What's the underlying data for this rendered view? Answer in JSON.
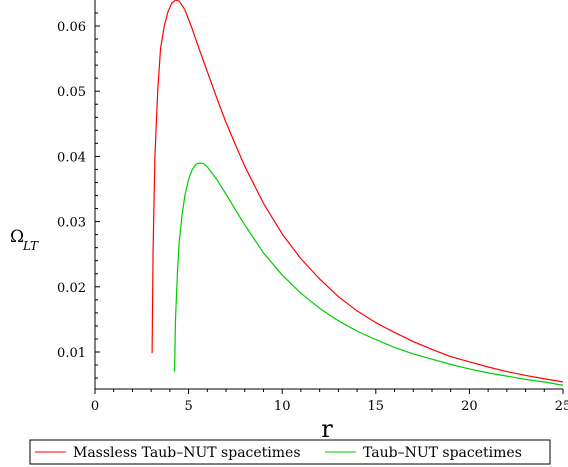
{
  "chart_data": {
    "type": "line",
    "title": "",
    "xlabel": "r",
    "ylabel": {
      "main": "Ω",
      "sub": "LT"
    },
    "xlim": [
      0,
      25
    ],
    "ylim": [
      0.004,
      0.065
    ],
    "x_ticks": [
      0,
      5,
      10,
      15,
      20,
      25
    ],
    "x_tick_labels": [
      "0",
      "5",
      "10",
      "15",
      "20",
      "25"
    ],
    "y_ticks": [
      0.01,
      0.02,
      0.03,
      0.04,
      0.05,
      0.06
    ],
    "y_tick_labels": [
      "0.01",
      "0.02",
      "0.03",
      "0.04",
      "0.05",
      "0.06"
    ],
    "grid": false,
    "legend_position": "bottom",
    "series": [
      {
        "name": "Massless Taub–NUT spacetimes",
        "color": "#ff0000",
        "x": [
          3.05,
          3.1,
          3.2,
          3.35,
          3.5,
          3.7,
          3.9,
          4.1,
          4.3,
          4.5,
          4.8,
          5.2,
          5.6,
          6.0,
          6.5,
          7.0,
          7.5,
          8.0,
          9.0,
          10.0,
          11.0,
          12.0,
          13.0,
          14.0,
          15.0,
          16.0,
          17.0,
          18.0,
          19.0,
          20.0,
          21.0,
          22.0,
          23.0,
          24.0,
          25.0
        ],
        "y": [
          0.0098,
          0.025,
          0.04,
          0.05,
          0.0565,
          0.06,
          0.0622,
          0.0635,
          0.064,
          0.0638,
          0.0625,
          0.0595,
          0.0562,
          0.053,
          0.049,
          0.0452,
          0.0418,
          0.0385,
          0.0328,
          0.0281,
          0.0243,
          0.0212,
          0.0185,
          0.0163,
          0.0145,
          0.013,
          0.0116,
          0.0104,
          0.0093,
          0.0085,
          0.0077,
          0.007,
          0.0064,
          0.0059,
          0.0054
        ]
      },
      {
        "name": "Taub–NUT spacetimes",
        "color": "#00cc00",
        "x": [
          4.25,
          4.3,
          4.4,
          4.5,
          4.65,
          4.8,
          5.0,
          5.2,
          5.4,
          5.6,
          5.8,
          6.0,
          6.5,
          7.0,
          7.5,
          8.0,
          9.0,
          10.0,
          11.0,
          12.0,
          13.0,
          14.0,
          15.0,
          16.0,
          17.0,
          18.0,
          19.0,
          20.0,
          21.0,
          22.0,
          23.0,
          24.0,
          25.0
        ],
        "y": [
          0.007,
          0.015,
          0.022,
          0.027,
          0.031,
          0.034,
          0.0365,
          0.038,
          0.0388,
          0.039,
          0.0389,
          0.0384,
          0.0365,
          0.0342,
          0.0318,
          0.0295,
          0.0252,
          0.0218,
          0.019,
          0.0167,
          0.0148,
          0.0132,
          0.0119,
          0.0107,
          0.0097,
          0.0089,
          0.0081,
          0.0074,
          0.0068,
          0.0063,
          0.0058,
          0.0054,
          0.0049
        ]
      }
    ]
  }
}
